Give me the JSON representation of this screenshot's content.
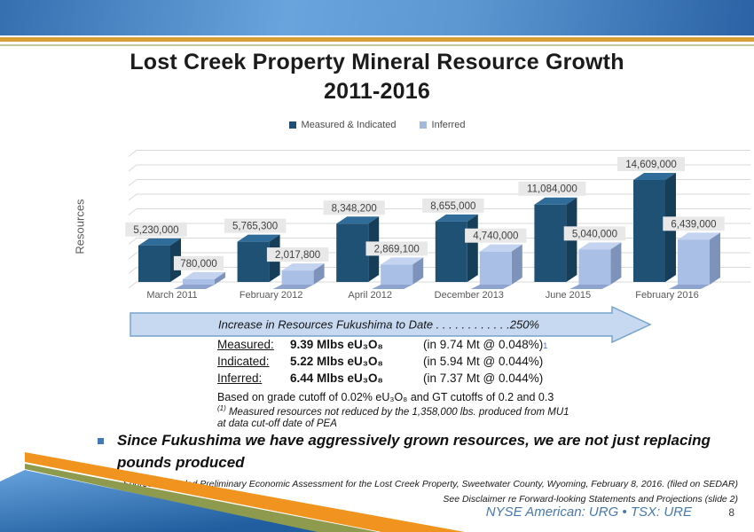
{
  "header": {
    "title_line1": "Lost Creek Property Mineral Resource Growth",
    "title_line2": "2011-2016"
  },
  "legend": {
    "items": [
      {
        "label": "Measured & Indicated",
        "color": "#1F4E79"
      },
      {
        "label": "Inferred",
        "color": "#A3B9DD"
      }
    ]
  },
  "chart_data": {
    "type": "bar",
    "style": "3d-clustered",
    "title": "",
    "xlabel": "",
    "ylabel": "Resources",
    "ylim": [
      0,
      16000000
    ],
    "grid": true,
    "legend_position": "top",
    "categories": [
      "March 2011",
      "February 2012",
      "April 2012",
      "December 2013",
      "June 2015",
      "February 2016"
    ],
    "series": [
      {
        "name": "Measured & Indicated",
        "color": "#1F5174",
        "side_color": "#163E58",
        "top_color": "#2F6C99",
        "values": [
          5230000,
          5765300,
          8348200,
          8655000,
          11084000,
          14609000
        ],
        "labels": [
          "5,230,000",
          "5,765,300",
          "8,348,200",
          "8,655,000",
          "11,084,000",
          "14,609,000"
        ]
      },
      {
        "name": "Inferred",
        "color": "#A9BFE6",
        "side_color": "#7E93BC",
        "top_color": "#C3D3F0",
        "floor_color": "#8EA4CE",
        "values": [
          780000,
          2017800,
          2869100,
          4740000,
          5040000,
          6439000
        ],
        "labels": [
          "780,000",
          "2,017,800",
          "2,869,100",
          "4,740,000",
          "5,040,000",
          "6,439,000"
        ]
      }
    ],
    "value_label_bg": "#E8E8E8",
    "value_label_color": "#3F3F3F",
    "gridline_color": "#D9D9D9",
    "category_label_color": "#595959"
  },
  "arrow_banner": {
    "text": "Increase in Resources Fukushima to Date . . . . . . . . . . . .250%",
    "fill": "#C6D9F1",
    "border": "#76A3CC"
  },
  "resources_summary": {
    "rows": [
      {
        "label": "Measured:",
        "amount": "9.39 Mlbs eU₃O₈",
        "detail": "(in 9.74 Mt @ 0.048%)",
        "footnote_ref": "1"
      },
      {
        "label": "Indicated:",
        "amount": "5.22 Mlbs eU₃O₈",
        "detail": "(in 5.94 Mt @ 0.044%)",
        "footnote_ref": ""
      },
      {
        "label": "Inferred:",
        "amount": "6.44 Mlbs eU₃O₈",
        "detail": "(in 7.37 Mt @ 0.044%)",
        "footnote_ref": ""
      }
    ],
    "basis_note": "Based on grade cutoff of 0.02% eU₃O₈ and GT cutoffs of 0.2 and 0.3",
    "footnote_marker": "(1)",
    "footnote_text": " Measured resources not reduced by the 1,358,000 lbs. produced from MU1 at data cut-off date of PEA"
  },
  "bullet": {
    "text": "Since Fukushima we have aggressively grown resources, we are not just replacing pounds produced"
  },
  "sources": {
    "line1": "Source: Amended Preliminary Economic Assessment for the Lost Creek Property, Sweetwater County, Wyoming, February 8, 2016.  (filed on SEDAR)",
    "line2": "See Disclaimer re Forward-looking Statements and Projections (slide 2)"
  },
  "footer": {
    "ticker": "NYSE American: URG • TSX: URE",
    "page_number": "8"
  },
  "colors": {
    "accent_gold": "#D89F36",
    "accent_sage": "#C2CA9C",
    "accent_orange": "#F0941F",
    "accent_olive": "#8E9B4F",
    "footer_blue": "#4678AC"
  }
}
